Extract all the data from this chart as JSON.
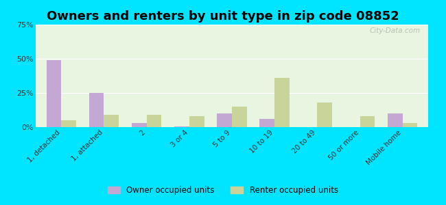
{
  "title": "Owners and renters by unit type in zip code 08852",
  "categories": [
    "1, detached",
    "1, attached",
    "2",
    "3 or 4",
    "5 to 9",
    "10 to 19",
    "20 to 49",
    "50 or more",
    "Mobile home"
  ],
  "owner_values": [
    49,
    25,
    3,
    0.5,
    10,
    6,
    0,
    0,
    10
  ],
  "renter_values": [
    5,
    9,
    9,
    8,
    15,
    36,
    18,
    8,
    3
  ],
  "owner_color": "#c4a8d4",
  "renter_color": "#c8d49a",
  "background_color": "#e8f5e0",
  "outer_background": "#00e5ff",
  "ylim": [
    0,
    75
  ],
  "yticks": [
    0,
    25,
    50,
    75
  ],
  "ytick_labels": [
    "0%",
    "25%",
    "50%",
    "75%"
  ],
  "legend_owner": "Owner occupied units",
  "legend_renter": "Renter occupied units",
  "title_fontsize": 13,
  "watermark": "City-Data.com"
}
